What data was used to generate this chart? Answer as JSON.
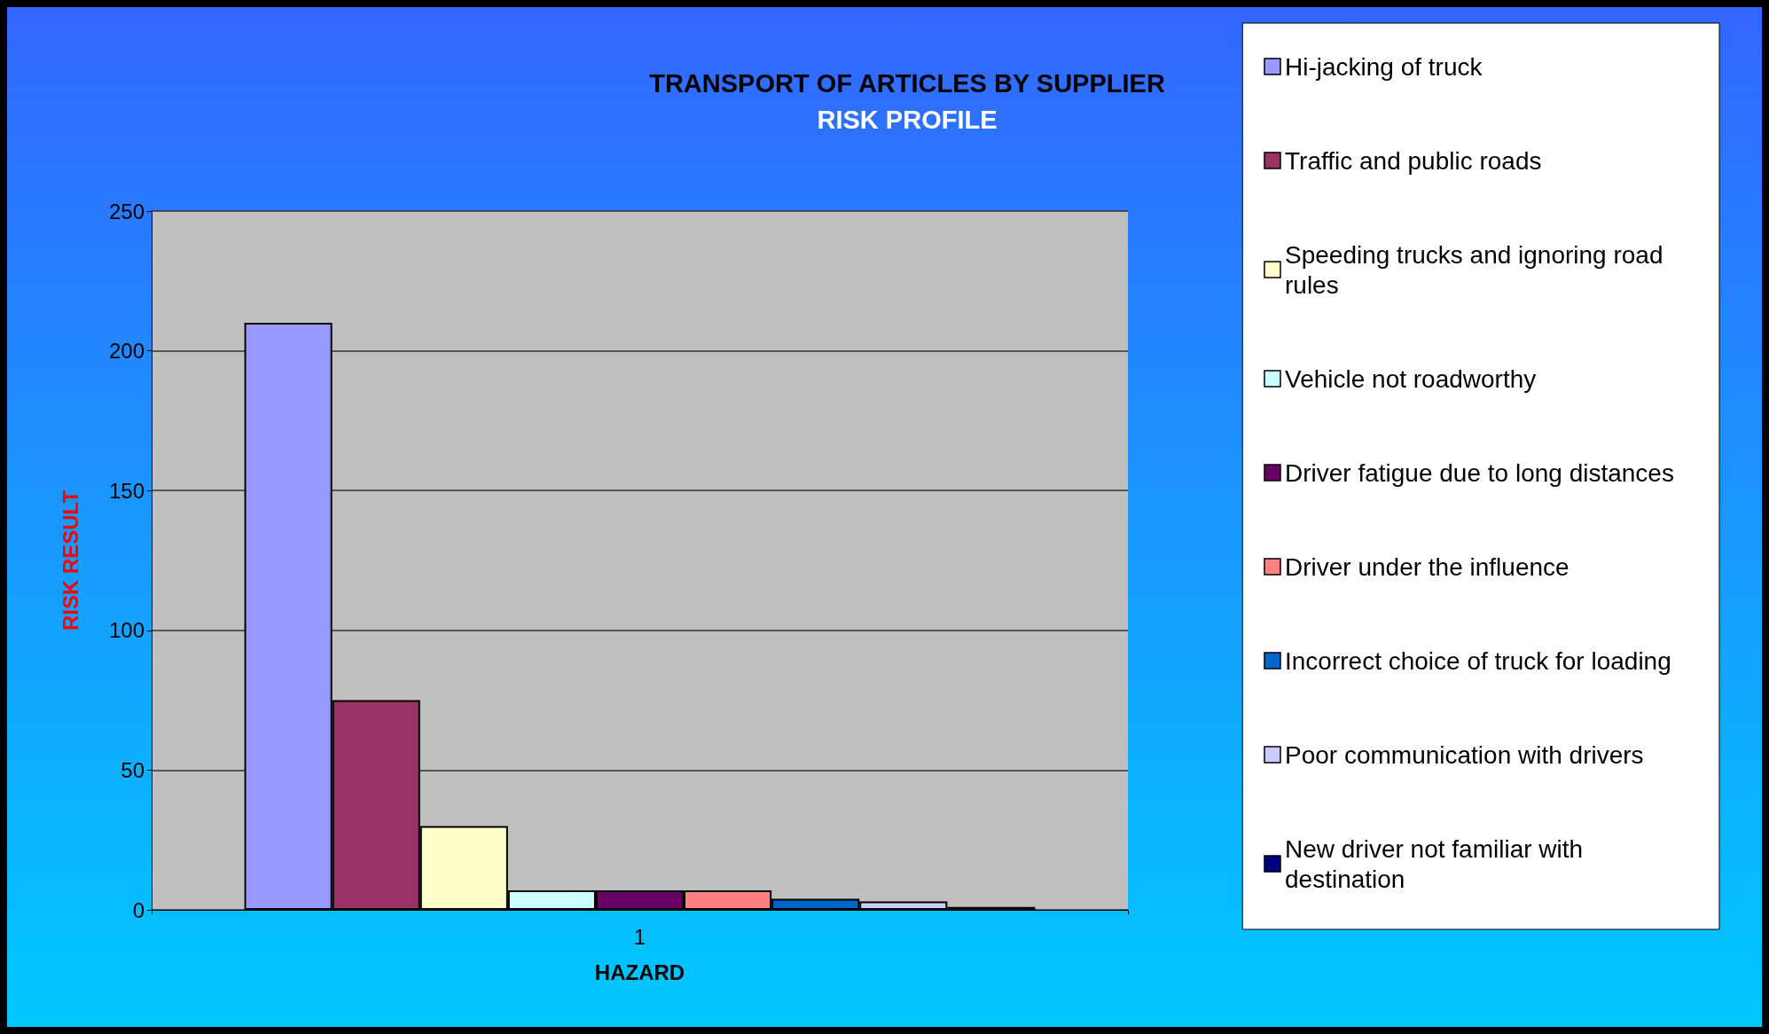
{
  "chart_data": {
    "type": "bar",
    "title": "TRANSPORT OF ARTICLES BY SUPPLIER",
    "subtitle": "RISK PROFILE",
    "xlabel": "HAZARD",
    "ylabel": "RISK RESULT",
    "categories": [
      "1"
    ],
    "series": [
      {
        "name": "Hi-jacking of truck",
        "color": "#9999ff",
        "values": [
          210
        ]
      },
      {
        "name": "Traffic and public roads",
        "color": "#993366",
        "values": [
          75
        ]
      },
      {
        "name": "Speeding trucks and ignoring road rules",
        "color": "#ffffcc",
        "values": [
          30
        ]
      },
      {
        "name": "Vehicle not roadworthy",
        "color": "#ccffff",
        "values": [
          7
        ]
      },
      {
        "name": "Driver fatigue due to long distances",
        "color": "#660066",
        "values": [
          7
        ]
      },
      {
        "name": "Driver under the influence",
        "color": "#ff8080",
        "values": [
          7
        ]
      },
      {
        "name": "Incorrect choice of truck for loading",
        "color": "#0066cc",
        "values": [
          4
        ]
      },
      {
        "name": "Poor communication with drivers",
        "color": "#ccccff",
        "values": [
          3
        ]
      },
      {
        "name": "New driver not familiar with destination",
        "color": "#000080",
        "values": [
          1
        ]
      }
    ],
    "ylim": [
      0,
      250
    ],
    "yticks": [
      0,
      50,
      100,
      150,
      200,
      250
    ],
    "grid": "y",
    "legend": "right"
  }
}
